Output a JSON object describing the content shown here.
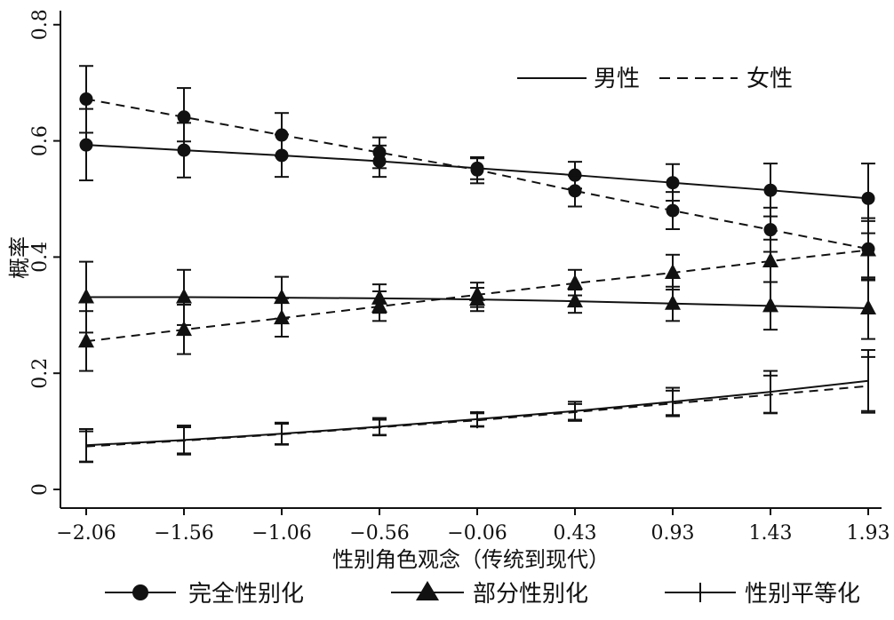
{
  "chart_data": {
    "type": "line",
    "xlabel": "性别角色观念（传统到现代）",
    "ylabel": "概率",
    "x": [
      -2.06,
      -1.56,
      -1.06,
      -0.56,
      -0.06,
      0.43,
      0.93,
      1.43,
      1.93
    ],
    "x_tick_labels": [
      "−2.06",
      "−1.56",
      "−1.06",
      "−0.56",
      "−0.06",
      "0.43",
      "0.93",
      "1.43",
      "1.93"
    ],
    "ylim": [
      0,
      0.8
    ],
    "y_ticks": [
      0,
      0.2,
      0.4,
      0.6,
      0.8
    ],
    "y_tick_labels": [
      "0",
      "0.2",
      "0.4",
      "0.6",
      "0.8"
    ],
    "grid": false,
    "legend_line": {
      "placement": "top-right",
      "entries": [
        {
          "label": "男性",
          "style": "solid"
        },
        {
          "label": "女性",
          "style": "dashed"
        }
      ]
    },
    "legend_marker": {
      "placement": "bottom",
      "entries": [
        {
          "label": "完全性别化",
          "marker": "circle"
        },
        {
          "label": "部分性别化",
          "marker": "triangle"
        },
        {
          "label": "性别平等化",
          "marker": "plus"
        }
      ]
    },
    "series": [
      {
        "outcome": "完全性别化",
        "gender": "男性",
        "marker": "circle",
        "dash": "solid",
        "values": [
          0.593,
          0.584,
          0.575,
          0.565,
          0.553,
          0.541,
          0.528,
          0.515,
          0.501
        ],
        "err_low": [
          0.532,
          0.537,
          0.538,
          0.538,
          0.534,
          0.518,
          0.497,
          0.47,
          0.441
        ],
        "err_high": [
          0.655,
          0.631,
          0.611,
          0.592,
          0.572,
          0.564,
          0.56,
          0.561,
          0.561
        ]
      },
      {
        "outcome": "完全性别化",
        "gender": "女性",
        "marker": "circle",
        "dash": "dashed",
        "values": [
          0.672,
          0.641,
          0.61,
          0.58,
          0.55,
          0.514,
          0.48,
          0.447,
          0.414
        ],
        "err_low": [
          0.614,
          0.599,
          0.574,
          0.553,
          0.527,
          0.487,
          0.448,
          0.409,
          0.362
        ],
        "err_high": [
          0.729,
          0.691,
          0.648,
          0.606,
          0.57,
          0.54,
          0.512,
          0.485,
          0.467
        ]
      },
      {
        "outcome": "部分性别化",
        "gender": "男性",
        "marker": "triangle",
        "dash": "solid",
        "values": [
          0.331,
          0.331,
          0.33,
          0.329,
          0.327,
          0.324,
          0.32,
          0.316,
          0.312
        ],
        "err_low": [
          0.27,
          0.283,
          0.294,
          0.304,
          0.307,
          0.304,
          0.29,
          0.275,
          0.259
        ],
        "err_high": [
          0.392,
          0.378,
          0.366,
          0.353,
          0.347,
          0.344,
          0.349,
          0.357,
          0.365
        ]
      },
      {
        "outcome": "部分性别化",
        "gender": "女性",
        "marker": "triangle",
        "dash": "dashed",
        "values": [
          0.255,
          0.275,
          0.295,
          0.315,
          0.335,
          0.355,
          0.373,
          0.393,
          0.412
        ],
        "err_low": [
          0.204,
          0.233,
          0.263,
          0.29,
          0.314,
          0.334,
          0.344,
          0.357,
          0.36
        ],
        "err_high": [
          0.307,
          0.318,
          0.329,
          0.341,
          0.356,
          0.378,
          0.404,
          0.43,
          0.462
        ]
      },
      {
        "outcome": "性别平等化",
        "gender": "男性",
        "marker": "plus",
        "dash": "solid",
        "values": [
          0.076,
          0.085,
          0.096,
          0.108,
          0.121,
          0.135,
          0.151,
          0.168,
          0.187
        ],
        "err_low": [
          0.047,
          0.06,
          0.077,
          0.093,
          0.109,
          0.12,
          0.128,
          0.132,
          0.135
        ],
        "err_high": [
          0.104,
          0.11,
          0.115,
          0.123,
          0.133,
          0.151,
          0.175,
          0.204,
          0.24
        ]
      },
      {
        "outcome": "性别平等化",
        "gender": "女性",
        "marker": "plus",
        "dash": "dashed",
        "values": [
          0.074,
          0.084,
          0.095,
          0.107,
          0.119,
          0.133,
          0.148,
          0.163,
          0.178
        ],
        "err_low": [
          0.048,
          0.062,
          0.078,
          0.094,
          0.108,
          0.118,
          0.126,
          0.131,
          0.132
        ],
        "err_high": [
          0.1,
          0.107,
          0.113,
          0.12,
          0.131,
          0.147,
          0.17,
          0.196,
          0.228
        ]
      }
    ]
  }
}
